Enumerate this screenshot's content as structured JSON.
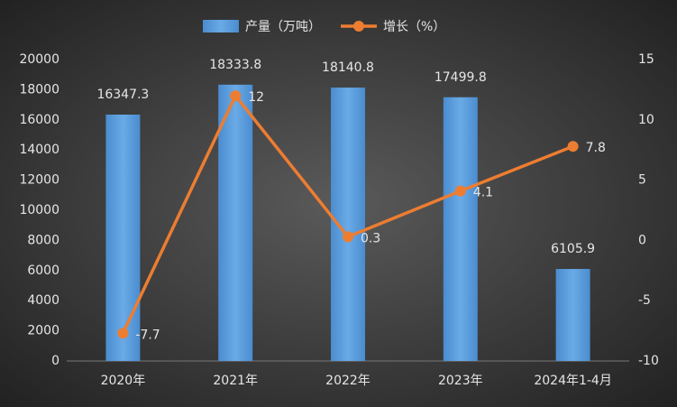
{
  "chart_data": {
    "type": "bar-line",
    "categories": [
      "2020年",
      "2021年",
      "2022年",
      "2023年",
      "2024年1-4月"
    ],
    "series": [
      {
        "name": "产量（万吨）",
        "type": "bar",
        "color": "#5b9bd5",
        "axis": "y",
        "values": [
          16347.3,
          18333.8,
          18140.8,
          17499.8,
          6105.9
        ]
      },
      {
        "name": "增长（%）",
        "type": "line",
        "color": "#ed7d31",
        "axis": "y2",
        "values": [
          -7.7,
          12,
          0.3,
          4.1,
          7.8
        ]
      }
    ],
    "ylim": [
      0,
      20000
    ],
    "yticks": [
      0,
      2000,
      4000,
      6000,
      8000,
      10000,
      12000,
      14000,
      16000,
      18000,
      20000
    ],
    "y2lim": [
      -10,
      15
    ],
    "y2ticks": [
      -10,
      -5,
      0,
      5,
      10,
      15
    ],
    "grid": false,
    "legend": "top"
  }
}
